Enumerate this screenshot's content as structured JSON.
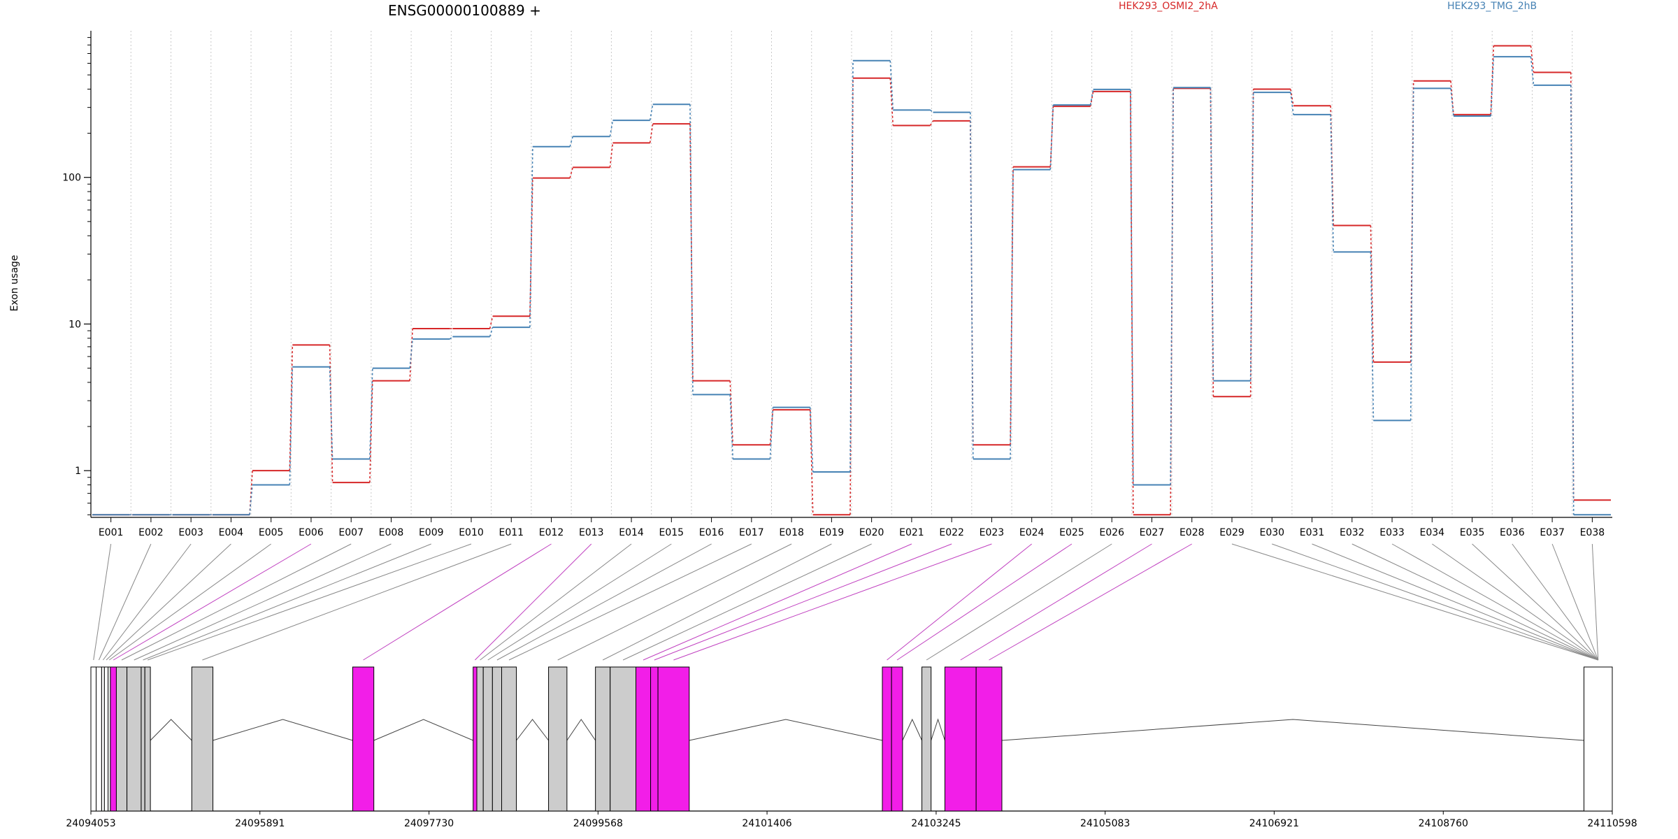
{
  "chart_data": {
    "type": "line",
    "title": "ENSG00000100889 +",
    "ylabel": "Exon usage",
    "y_scale": "log",
    "ylim": [
      0.48,
      1000
    ],
    "y_ticks": [
      1,
      10,
      100
    ],
    "y_tick_labels": [
      "1",
      "10",
      "100"
    ],
    "grid": true,
    "legend_placement": "top",
    "categories": [
      "E001",
      "E002",
      "E003",
      "E004",
      "E005",
      "E006",
      "E007",
      "E008",
      "E009",
      "E010",
      "E011",
      "E012",
      "E013",
      "E014",
      "E015",
      "E016",
      "E017",
      "E018",
      "E019",
      "E020",
      "E021",
      "E022",
      "E023",
      "E024",
      "E025",
      "E026",
      "E027",
      "E028",
      "E029",
      "E030",
      "E031",
      "E032",
      "E033",
      "E034",
      "E035",
      "E036",
      "E037",
      "E038"
    ],
    "series": [
      {
        "name": "HEK293_OSMI2_2hA",
        "color": "#d62728",
        "values": [
          0.5,
          0.5,
          0.5,
          0.5,
          1.0,
          7.2,
          0.83,
          4.1,
          9.3,
          9.3,
          11.3,
          99,
          117,
          172,
          232,
          4.1,
          1.5,
          2.6,
          0.5,
          475,
          226,
          243,
          1.5,
          118,
          305,
          385,
          0.5,
          405,
          3.2,
          400,
          308,
          47,
          5.5,
          455,
          268,
          790,
          520,
          0.63
        ]
      },
      {
        "name": "HEK293_TMG_2hB",
        "color": "#4682b4",
        "values": [
          0.5,
          0.5,
          0.5,
          0.5,
          0.8,
          5.1,
          1.2,
          5.0,
          7.9,
          8.2,
          9.5,
          162,
          190,
          245,
          315,
          3.3,
          1.2,
          2.7,
          0.98,
          625,
          288,
          278,
          1.2,
          113,
          312,
          398,
          0.8,
          410,
          4.1,
          380,
          268,
          31,
          2.2,
          405,
          262,
          665,
          425,
          0.5
        ]
      }
    ],
    "gene_model": {
      "coordinate_labels": [
        "24094053",
        "24095891",
        "24097730",
        "24099568",
        "24101406",
        "24103245",
        "24105083",
        "24106921",
        "24108760",
        "24110598"
      ],
      "exons": [
        {
          "start": 24094053,
          "end": 24094110,
          "highlight": false
        },
        {
          "start": 24094110,
          "end": 24094170,
          "highlight": false
        },
        {
          "start": 24094170,
          "end": 24094200,
          "highlight": false
        },
        {
          "start": 24094200,
          "end": 24094240,
          "highlight": false
        },
        {
          "start": 24094240,
          "end": 24094265,
          "highlight": false
        },
        {
          "start": 24094265,
          "end": 24094330,
          "highlight": true
        },
        {
          "start": 24094330,
          "end": 24094445,
          "highlight": false
        },
        {
          "start": 24094445,
          "end": 24094600,
          "highlight": false
        },
        {
          "start": 24094600,
          "end": 24094640,
          "highlight": false
        },
        {
          "start": 24094640,
          "end": 24094700,
          "highlight": false
        },
        {
          "start": 24095150,
          "end": 24095380,
          "highlight": false
        },
        {
          "start": 24096900,
          "end": 24097130,
          "highlight": true
        },
        {
          "start": 24098210,
          "end": 24098250,
          "highlight": true
        },
        {
          "start": 24098250,
          "end": 24098320,
          "highlight": false
        },
        {
          "start": 24098320,
          "end": 24098420,
          "highlight": false
        },
        {
          "start": 24098420,
          "end": 24098520,
          "highlight": false
        },
        {
          "start": 24098520,
          "end": 24098680,
          "highlight": false
        },
        {
          "start": 24099030,
          "end": 24099230,
          "highlight": false
        },
        {
          "start": 24099540,
          "end": 24099700,
          "highlight": false
        },
        {
          "start": 24099700,
          "end": 24099980,
          "highlight": false
        },
        {
          "start": 24099980,
          "end": 24100140,
          "highlight": true
        },
        {
          "start": 24100140,
          "end": 24100220,
          "highlight": true
        },
        {
          "start": 24100220,
          "end": 24100560,
          "highlight": true
        },
        {
          "start": 24102660,
          "end": 24102760,
          "highlight": true
        },
        {
          "start": 24102760,
          "end": 24102880,
          "highlight": true
        },
        {
          "start": 24103090,
          "end": 24103190,
          "highlight": false
        },
        {
          "start": 24103340,
          "end": 24103680,
          "highlight": true
        },
        {
          "start": 24103680,
          "end": 24103960,
          "highlight": true
        },
        {
          "start": 24110290,
          "end": 24110598,
          "highlight": false
        }
      ]
    }
  }
}
